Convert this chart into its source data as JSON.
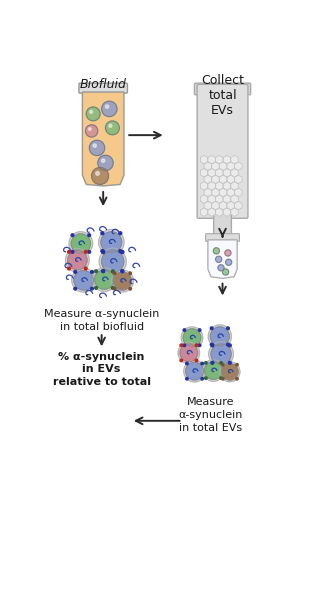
{
  "background_color": "#ffffff",
  "biofluid_label": "Biofluid",
  "collect_evs_label": "Collect\ntotal\nEVs",
  "measure_total_label": "Measure α-synuclein\nin total biofluid",
  "measure_ev_label": "Measure\nα-synuclein\nin total EVs",
  "percent_label": "% α-synuclein\nin EVs\nrelative to total",
  "text_color": "#1a1a1a",
  "arrow_color": "#2a2a2a",
  "tube_fill": "#f5c98a",
  "tube_edge": "#999999",
  "tube_rim": "#dddddd",
  "col_fill": "#e0e0e0",
  "col_edge": "#aaaaaa",
  "mesh_fill": "#ebebeb",
  "mesh_edge": "#c0c0c0",
  "small_tube_fill": "#f8f8ff",
  "ev_green": "#7ab87a",
  "ev_blue": "#8899cc",
  "ev_pink": "#cc8899",
  "ev_brown": "#a08060",
  "dot_blue": "#2233aa",
  "dot_red": "#cc2211",
  "dot_green": "#336633",
  "dot_brown": "#7a5030",
  "free_syn_color": "#3344aa",
  "syn_color": "#2244aa"
}
